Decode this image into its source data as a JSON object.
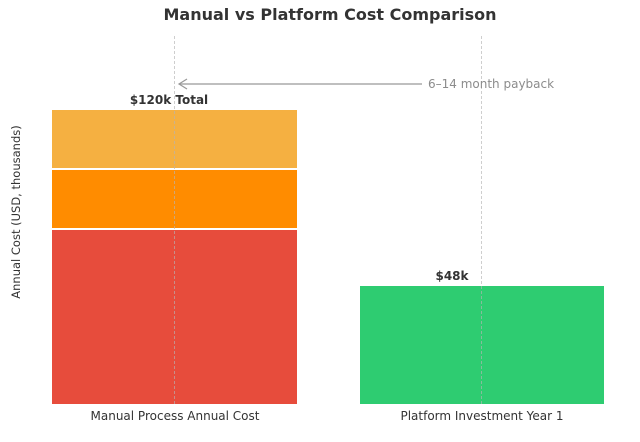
{
  "chart": {
    "title": "Manual vs Platform Cost Comparison",
    "y_axis_label": "Annual Cost (USD, thousands)",
    "manual_total_label": "$120k Total",
    "platform_value_label": "$48k",
    "annotation_text": "6–14 month payback"
  },
  "chart_data": {
    "type": "bar",
    "subtype": "stacked",
    "title": "Manual vs Platform Cost Comparison",
    "xlabel": "",
    "ylabel": "Annual Cost (USD, thousands)",
    "categories": [
      "Manual Process Annual Cost",
      "Platform Investment Year 1"
    ],
    "series": [
      {
        "name": "manual-segment-bottom",
        "color": "#E74C3C",
        "values": [
          72,
          0
        ]
      },
      {
        "name": "manual-segment-middle",
        "color": "#FF8C00",
        "values": [
          24,
          0
        ]
      },
      {
        "name": "manual-segment-top",
        "color": "#F5B041",
        "values": [
          24,
          0
        ]
      },
      {
        "name": "platform-investment",
        "color": "#2ECC71",
        "values": [
          0,
          48
        ]
      }
    ],
    "totals": [
      120,
      48
    ],
    "bar_value_labels": [
      "$120k Total",
      "$48k"
    ],
    "annotations": [
      {
        "text": "6–14 month payback",
        "arrow": "horizontal, pointing left toward manual bar center"
      }
    ],
    "ylim": [
      0,
      150
    ],
    "grid": "vertical dashed lines at bar centers",
    "legend": "none",
    "y_tick_labels": "none shown"
  },
  "colors": {
    "manual_bottom": "#E74C3C",
    "manual_middle": "#FF8C00",
    "manual_top": "#F5B041",
    "platform": "#2ECC71",
    "text_dark": "#333333",
    "annotation_gray": "#8C8C8C",
    "arrow_gray": "#999999",
    "gridline": "#B4B4B4",
    "segment_gap": "#FFFFFF",
    "background": "#FFFFFF"
  },
  "icons": {
    "payback_arrow": "left-arrow"
  }
}
